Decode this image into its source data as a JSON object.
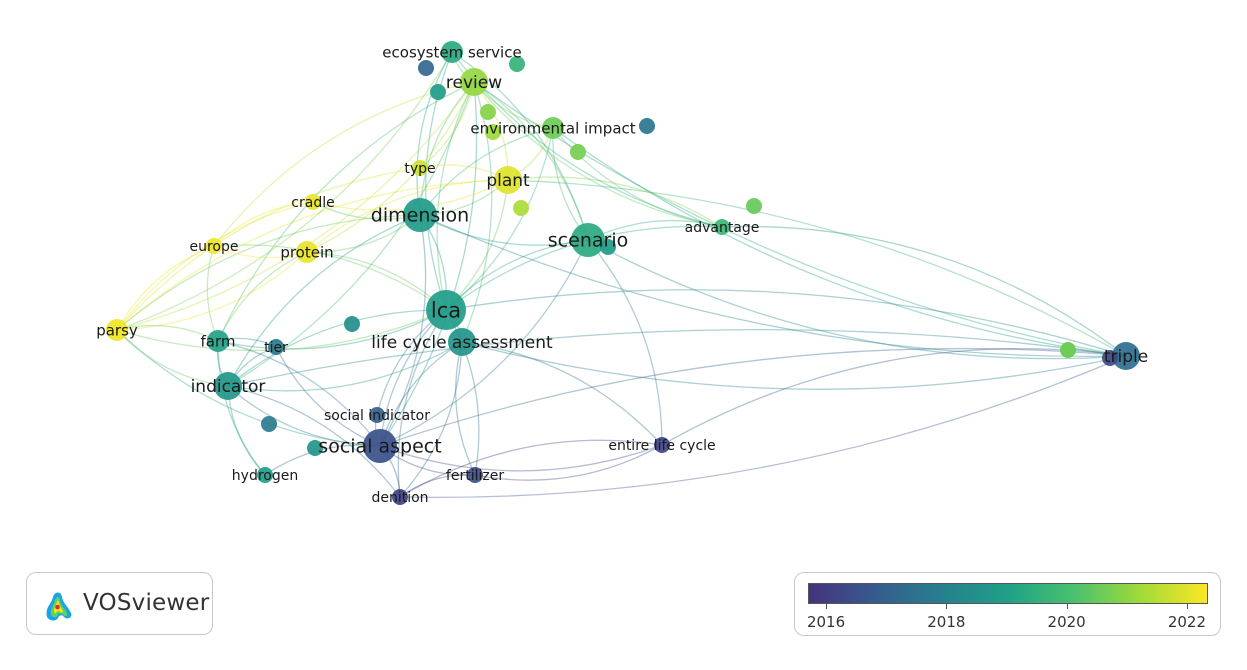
{
  "app": {
    "name": "VOSviewer"
  },
  "legend": {
    "colors": [
      "#46327e",
      "#365c8d",
      "#277f8e",
      "#1fa187",
      "#4ac16d",
      "#a0da39",
      "#fde725"
    ],
    "ticks": [
      {
        "label": "2016",
        "value": 2016
      },
      {
        "label": "2018",
        "value": 2018
      },
      {
        "label": "2020",
        "value": 2020
      },
      {
        "label": "2022",
        "value": 2022
      }
    ],
    "min": 2015.7,
    "max": 2022.35
  },
  "nodes": [
    {
      "id": "ecosystem_service",
      "label": "ecosystem service",
      "year": 2019.3,
      "weight": 2
    },
    {
      "id": "review",
      "label": "review",
      "year": 2021.1,
      "weight": 3
    },
    {
      "id": "environmental_impact",
      "label": "environmental impact",
      "year": 2020.6,
      "weight": 2
    },
    {
      "id": "type",
      "label": "type",
      "year": 2021.8,
      "weight": 1
    },
    {
      "id": "plant",
      "label": "plant",
      "year": 2022.0,
      "weight": 3
    },
    {
      "id": "cradle",
      "label": "cradle",
      "year": 2022.1,
      "weight": 1
    },
    {
      "id": "dimension",
      "label": "dimension",
      "year": 2018.8,
      "weight": 4
    },
    {
      "id": "scenario",
      "label": "scenario",
      "year": 2019.3,
      "weight": 4
    },
    {
      "id": "advantage",
      "label": "advantage",
      "year": 2019.8,
      "weight": 1
    },
    {
      "id": "europe",
      "label": "europe",
      "year": 2022.2,
      "weight": 1
    },
    {
      "id": "protein",
      "label": "protein",
      "year": 2022.1,
      "weight": 2
    },
    {
      "id": "parsy",
      "label": "parsy",
      "year": 2022.2,
      "weight": 2
    },
    {
      "id": "lca",
      "label": "lca",
      "year": 2018.9,
      "weight": 5
    },
    {
      "id": "life_cycle_assessment",
      "label": "life cycle assessment",
      "year": 2018.6,
      "weight": 3
    },
    {
      "id": "farm",
      "label": "farm",
      "year": 2019.1,
      "weight": 2
    },
    {
      "id": "tier",
      "label": "tier",
      "year": 2017.7,
      "weight": 1
    },
    {
      "id": "triple",
      "label": "triple",
      "year": 2017.4,
      "weight": 3
    },
    {
      "id": "indicator",
      "label": "indicator",
      "year": 2018.7,
      "weight": 3
    },
    {
      "id": "social_indicator",
      "label": "social indicator",
      "year": 2016.9,
      "weight": 1
    },
    {
      "id": "social_aspect",
      "label": "social aspect",
      "year": 2016.5,
      "weight": 4
    },
    {
      "id": "entire_life_cycle",
      "label": "entire life cycle",
      "year": 2016.2,
      "weight": 1
    },
    {
      "id": "hydrogen",
      "label": "hydrogen",
      "year": 2018.9,
      "weight": 1
    },
    {
      "id": "fertilizer",
      "label": "fertilizer",
      "year": 2016.4,
      "weight": 1
    },
    {
      "id": "denition",
      "label": "denition",
      "year": 2016.1,
      "weight": 1
    },
    {
      "id": "n_a",
      "label": "",
      "year": 2017.2,
      "weight": 1
    },
    {
      "id": "n_b",
      "label": "",
      "year": 2019.6,
      "weight": 1
    },
    {
      "id": "n_c",
      "label": "",
      "year": 2018.9,
      "weight": 1
    },
    {
      "id": "n_d",
      "label": "",
      "year": 2020.9,
      "weight": 1
    },
    {
      "id": "n_e",
      "label": "",
      "year": 2021.2,
      "weight": 1
    },
    {
      "id": "n_f",
      "label": "",
      "year": 2020.7,
      "weight": 1
    },
    {
      "id": "n_g",
      "label": "",
      "year": 2021.4,
      "weight": 1
    },
    {
      "id": "n_h",
      "label": "",
      "year": 2018.4,
      "weight": 1
    },
    {
      "id": "n_i",
      "label": "",
      "year": 2017.8,
      "weight": 1
    },
    {
      "id": "n_j",
      "label": "",
      "year": 2018.6,
      "weight": 1
    },
    {
      "id": "n_k",
      "label": "",
      "year": 2020.5,
      "weight": 1
    },
    {
      "id": "n_l",
      "label": "",
      "year": 2017.6,
      "weight": 1
    },
    {
      "id": "n_m",
      "label": "",
      "year": 2018.8,
      "weight": 1
    },
    {
      "id": "n_n",
      "label": "",
      "year": 2016.3,
      "weight": 1
    }
  ],
  "edges": [
    [
      "lca",
      "life_cycle_assessment"
    ],
    [
      "lca",
      "dimension"
    ],
    [
      "lca",
      "scenario"
    ],
    [
      "lca",
      "social_aspect"
    ],
    [
      "lca",
      "review"
    ],
    [
      "lca",
      "plant"
    ],
    [
      "lca",
      "farm"
    ],
    [
      "lca",
      "indicator"
    ],
    [
      "lca",
      "triple"
    ],
    [
      "lca",
      "protein"
    ],
    [
      "lca",
      "parsy"
    ],
    [
      "lca",
      "europe"
    ],
    [
      "lca",
      "advantage"
    ],
    [
      "lca",
      "environmental_impact"
    ],
    [
      "lca",
      "ecosystem_service"
    ],
    [
      "lca",
      "denition"
    ],
    [
      "lca",
      "fertilizer"
    ],
    [
      "lca",
      "social_indicator"
    ],
    [
      "dimension",
      "review"
    ],
    [
      "dimension",
      "scenario"
    ],
    [
      "dimension",
      "social_aspect"
    ],
    [
      "dimension",
      "plant"
    ],
    [
      "dimension",
      "ecosystem_service"
    ],
    [
      "dimension",
      "parsy"
    ],
    [
      "dimension",
      "cradle"
    ],
    [
      "dimension",
      "indicator"
    ],
    [
      "dimension",
      "protein"
    ],
    [
      "dimension",
      "triple"
    ],
    [
      "dimension",
      "environmental_impact"
    ],
    [
      "scenario",
      "review"
    ],
    [
      "scenario",
      "advantage"
    ],
    [
      "scenario",
      "triple"
    ],
    [
      "scenario",
      "environmental_impact"
    ],
    [
      "scenario",
      "ecosystem_service"
    ],
    [
      "scenario",
      "social_aspect"
    ],
    [
      "life_cycle_assessment",
      "social_aspect"
    ],
    [
      "life_cycle_assessment",
      "entire_life_cycle"
    ],
    [
      "life_cycle_assessment",
      "triple"
    ],
    [
      "life_cycle_assessment",
      "indicator"
    ],
    [
      "life_cycle_assessment",
      "review"
    ],
    [
      "life_cycle_assessment",
      "denition"
    ],
    [
      "life_cycle_assessment",
      "fertilizer"
    ],
    [
      "social_aspect",
      "indicator"
    ],
    [
      "social_aspect",
      "entire_life_cycle"
    ],
    [
      "social_aspect",
      "denition"
    ],
    [
      "social_aspect",
      "fertilizer"
    ],
    [
      "social_aspect",
      "social_indicator"
    ],
    [
      "social_aspect",
      "farm"
    ],
    [
      "social_aspect",
      "tier"
    ],
    [
      "social_aspect",
      "hydrogen"
    ],
    [
      "social_aspect",
      "triple"
    ],
    [
      "social_aspect",
      "review"
    ],
    [
      "social_aspect",
      "parsy"
    ],
    [
      "triple",
      "advantage"
    ],
    [
      "triple",
      "environmental_impact"
    ],
    [
      "triple",
      "entire_life_cycle"
    ],
    [
      "triple",
      "review"
    ],
    [
      "triple",
      "indicator"
    ],
    [
      "triple",
      "denition"
    ],
    [
      "triple",
      "plant"
    ],
    [
      "parsy",
      "europe"
    ],
    [
      "parsy",
      "protein"
    ],
    [
      "parsy",
      "farm"
    ],
    [
      "parsy",
      "indicator"
    ],
    [
      "parsy",
      "cradle"
    ],
    [
      "parsy",
      "review"
    ],
    [
      "parsy",
      "plant"
    ],
    [
      "parsy",
      "ecosystem_service"
    ],
    [
      "parsy",
      "type"
    ],
    [
      "europe",
      "protein"
    ],
    [
      "europe",
      "review"
    ],
    [
      "europe",
      "farm"
    ],
    [
      "europe",
      "cradle"
    ],
    [
      "protein",
      "review"
    ],
    [
      "protein",
      "plant"
    ],
    [
      "protein",
      "farm"
    ],
    [
      "review",
      "ecosystem_service"
    ],
    [
      "review",
      "environmental_impact"
    ],
    [
      "review",
      "plant"
    ],
    [
      "review",
      "advantage"
    ],
    [
      "review",
      "indicator"
    ],
    [
      "review",
      "farm"
    ],
    [
      "review",
      "type"
    ],
    [
      "environmental_impact",
      "advantage"
    ],
    [
      "environmental_impact",
      "plant"
    ],
    [
      "farm",
      "indicator"
    ],
    [
      "farm",
      "tier"
    ],
    [
      "indicator",
      "hydrogen"
    ],
    [
      "indicator",
      "tier"
    ],
    [
      "entire_life_cycle",
      "denition"
    ],
    [
      "entire_life_cycle",
      "fertilizer"
    ],
    [
      "entire_life_cycle",
      "scenario"
    ],
    [
      "denition",
      "fertilizer"
    ],
    [
      "denition",
      "indicator"
    ],
    [
      "hydrogen",
      "farm"
    ],
    [
      "advantage",
      "plant"
    ],
    [
      "advantage",
      "ecosystem_service"
    ],
    [
      "cradle",
      "plant"
    ],
    [
      "type",
      "plant"
    ]
  ]
}
